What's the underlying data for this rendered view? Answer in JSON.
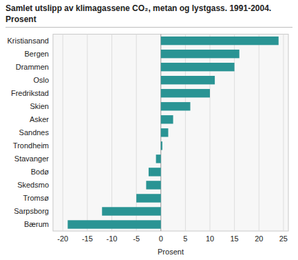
{
  "chart_data": {
    "type": "bar",
    "orientation": "horizontal",
    "title": "Samlet utslipp av klimagassene CO₂, metan og lystgass. 1991-2004.\nProsent",
    "categories": [
      "Kristiansand",
      "Bergen",
      "Drammen",
      "Oslo",
      "Fredrikstad",
      "Skien",
      "Asker",
      "Sandnes",
      "Trondheim",
      "Stavanger",
      "Bodø",
      "Skedsmo",
      "Tromsø",
      "Sarpsborg",
      "Bærum"
    ],
    "values": [
      24,
      16,
      15,
      11,
      10,
      6,
      2.5,
      1.5,
      0.3,
      -1,
      -2.5,
      -3,
      -5,
      -12,
      -19
    ],
    "color": "#2a9494",
    "xlim": [
      -22,
      26
    ],
    "xticks": [
      -20,
      -15,
      -10,
      -5,
      0,
      5,
      10,
      15,
      20,
      25
    ],
    "xlabel": "Prosent",
    "grid": true
  }
}
